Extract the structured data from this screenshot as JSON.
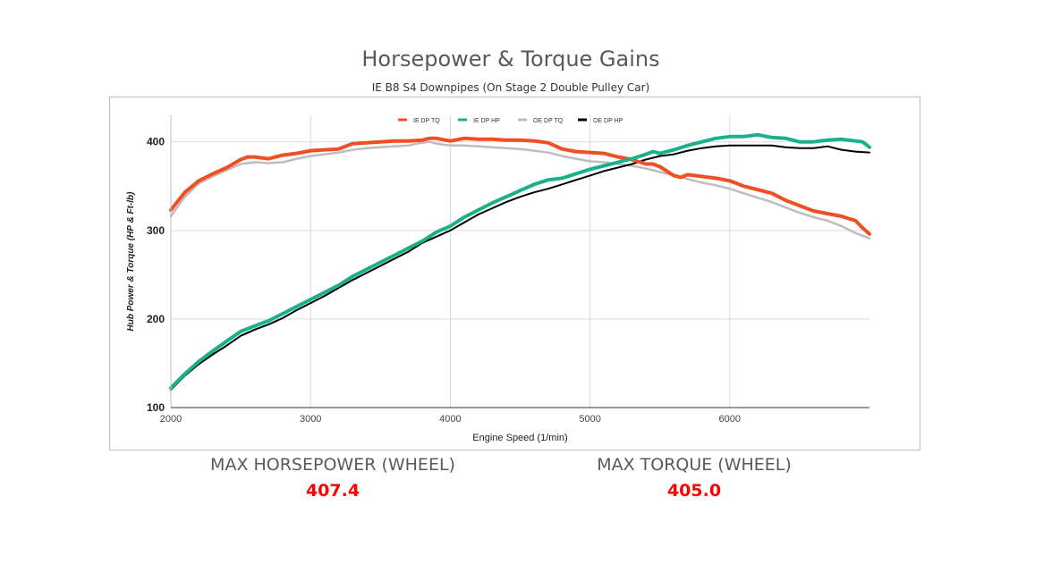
{
  "header": {
    "title": "Horsepower & Torque Gains",
    "subtitle": "IE B8 S4 Downpipes (On Stage 2 Double Pulley Car)"
  },
  "stats": {
    "hp_label": "MAX HORSEPOWER (WHEEL)",
    "hp_value": "407.4",
    "tq_label": "MAX TORQUE (WHEEL)",
    "tq_value": "405.0"
  },
  "chart_data": {
    "type": "line",
    "title": "",
    "xlabel": "Engine Speed (1/min)",
    "ylabel": "Hub Power & Torque (HP & Ft-lb)",
    "xlim": [
      2000,
      7000
    ],
    "ylim": [
      100,
      430
    ],
    "x_ticks": [
      "2000",
      "3000",
      "4000",
      "5000",
      "6000"
    ],
    "y_ticks": [
      "100",
      "200",
      "300",
      "400"
    ],
    "grid": true,
    "legend_position": "top",
    "series": [
      {
        "name": "IE DP TQ",
        "color": "#f04e23",
        "x": [
          2000,
          2100,
          2200,
          2300,
          2400,
          2500,
          2550,
          2600,
          2700,
          2800,
          2900,
          3000,
          3100,
          3200,
          3300,
          3400,
          3500,
          3600,
          3700,
          3800,
          3850,
          3900,
          4000,
          4100,
          4200,
          4300,
          4400,
          4500,
          4600,
          4700,
          4800,
          4900,
          5000,
          5100,
          5200,
          5300,
          5400,
          5450,
          5500,
          5600,
          5650,
          5700,
          5800,
          5900,
          6000,
          6100,
          6200,
          6300,
          6400,
          6500,
          6600,
          6700,
          6800,
          6900,
          6950,
          7000
        ],
        "y": [
          323,
          343,
          356,
          364,
          371,
          380,
          383,
          383,
          381,
          385,
          387,
          390,
          391,
          392,
          398,
          399,
          400,
          401,
          401,
          402,
          404,
          404,
          401,
          404,
          403,
          403,
          402,
          402,
          401,
          399,
          392,
          389,
          388,
          387,
          383,
          380,
          375,
          375,
          372,
          362,
          360,
          363,
          361,
          359,
          356,
          350,
          346,
          342,
          334,
          328,
          322,
          319,
          316,
          311,
          303,
          296
        ]
      },
      {
        "name": "IE DP HP",
        "color": "#1ab08a",
        "x": [
          2000,
          2100,
          2200,
          2300,
          2400,
          2500,
          2600,
          2700,
          2800,
          2900,
          3000,
          3100,
          3200,
          3300,
          3400,
          3500,
          3600,
          3700,
          3800,
          3900,
          4000,
          4100,
          4200,
          4300,
          4400,
          4500,
          4600,
          4700,
          4800,
          4900,
          5000,
          5100,
          5200,
          5300,
          5400,
          5450,
          5500,
          5600,
          5700,
          5800,
          5900,
          6000,
          6100,
          6200,
          6300,
          6400,
          6500,
          6600,
          6700,
          6800,
          6900,
          6950,
          7000
        ],
        "y": [
          122,
          138,
          152,
          164,
          175,
          186,
          192,
          198,
          206,
          214,
          222,
          230,
          238,
          248,
          256,
          264,
          272,
          280,
          288,
          298,
          305,
          315,
          323,
          331,
          338,
          345,
          352,
          357,
          359,
          364,
          369,
          373,
          377,
          381,
          386,
          389,
          387,
          391,
          396,
          400,
          404,
          406,
          406,
          408,
          405,
          404,
          400,
          400,
          402,
          403,
          401,
          400,
          394
        ]
      },
      {
        "name": "OE DP TQ",
        "color": "#bdbdbd",
        "x": [
          2000,
          2100,
          2200,
          2300,
          2400,
          2500,
          2600,
          2700,
          2800,
          2900,
          3000,
          3100,
          3200,
          3300,
          3400,
          3500,
          3600,
          3700,
          3800,
          3850,
          3900,
          4000,
          4100,
          4200,
          4300,
          4400,
          4500,
          4600,
          4700,
          4800,
          4900,
          5000,
          5100,
          5200,
          5300,
          5400,
          5500,
          5600,
          5700,
          5800,
          5900,
          6000,
          6100,
          6200,
          6300,
          6400,
          6500,
          6600,
          6700,
          6800,
          6900,
          7000
        ],
        "y": [
          316,
          338,
          353,
          361,
          368,
          375,
          377,
          376,
          377,
          381,
          384,
          386,
          388,
          391,
          393,
          394,
          395,
          396,
          399,
          400,
          398,
          396,
          396,
          395,
          394,
          393,
          392,
          390,
          388,
          384,
          381,
          378,
          377,
          375,
          373,
          370,
          366,
          362,
          358,
          354,
          351,
          347,
          342,
          337,
          332,
          326,
          320,
          315,
          311,
          305,
          297,
          291
        ]
      },
      {
        "name": "OE DP HP",
        "color": "#000000",
        "x": [
          2000,
          2100,
          2200,
          2300,
          2400,
          2500,
          2600,
          2700,
          2800,
          2900,
          3000,
          3100,
          3200,
          3300,
          3400,
          3500,
          3600,
          3700,
          3800,
          3900,
          4000,
          4100,
          4200,
          4300,
          4400,
          4500,
          4600,
          4700,
          4800,
          4900,
          5000,
          5100,
          5200,
          5300,
          5400,
          5500,
          5600,
          5700,
          5800,
          5900,
          6000,
          6100,
          6200,
          6300,
          6400,
          6500,
          6600,
          6700,
          6800,
          6900,
          7000
        ],
        "y": [
          120,
          136,
          149,
          160,
          170,
          181,
          188,
          194,
          201,
          210,
          218,
          226,
          235,
          244,
          252,
          260,
          268,
          276,
          286,
          293,
          300,
          309,
          318,
          325,
          332,
          338,
          343,
          347,
          352,
          357,
          362,
          367,
          371,
          375,
          380,
          384,
          386,
          390,
          393,
          395,
          396,
          396,
          396,
          396,
          394,
          393,
          393,
          395,
          391,
          389,
          388
        ]
      }
    ]
  }
}
